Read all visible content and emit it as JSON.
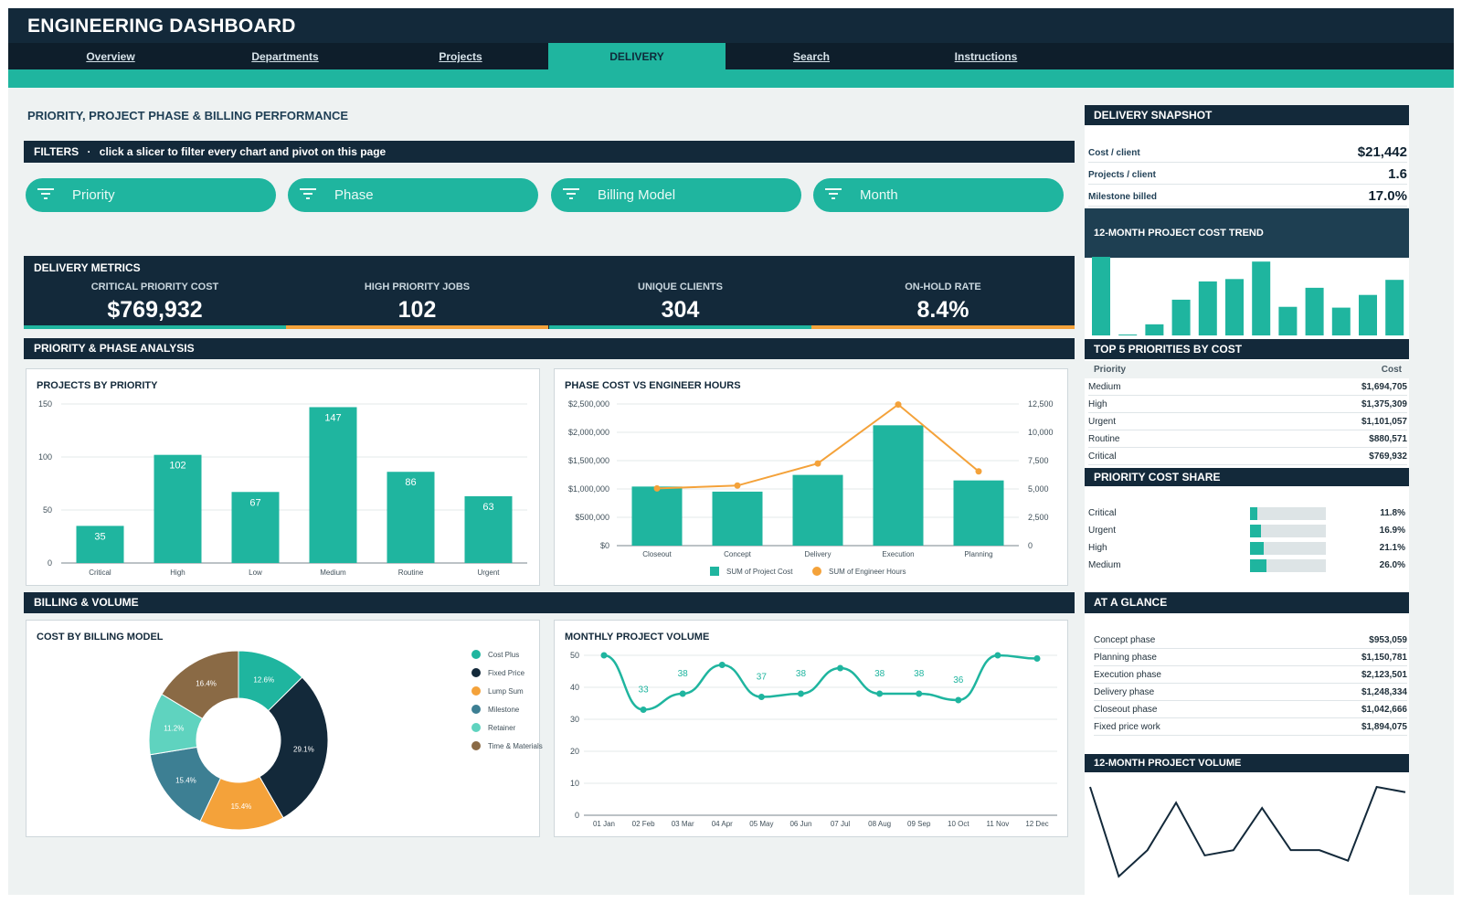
{
  "app": {
    "title": "ENGINEERING DASHBOARD"
  },
  "nav": {
    "tabs": [
      {
        "label": "Overview",
        "active": false
      },
      {
        "label": "Departments",
        "active": false
      },
      {
        "label": "Projects",
        "active": false
      },
      {
        "label": "DELIVERY",
        "active": true
      },
      {
        "label": "Search",
        "active": false
      },
      {
        "label": "Instructions",
        "active": false
      }
    ]
  },
  "page": {
    "heading": "PRIORITY, PROJECT PHASE & BILLING PERFORMANCE"
  },
  "filters": {
    "label": "FILTERS",
    "hint": "click a slicer to filter every chart and pivot on this page",
    "slicers": [
      "Priority",
      "Phase",
      "Billing Model",
      "Month"
    ]
  },
  "metrics": {
    "header": "DELIVERY METRICS",
    "items": [
      {
        "label": "CRITICAL PRIORITY COST",
        "value": "$769,932",
        "accent": "#1fb59f"
      },
      {
        "label": "HIGH PRIORITY JOBS",
        "value": "102",
        "accent": "#f4a23a"
      },
      {
        "label": "UNIQUE CLIENTS",
        "value": "304",
        "accent": "#1fb59f"
      },
      {
        "label": "ON-HOLD RATE",
        "value": "8.4%",
        "accent": "#f4a23a"
      }
    ]
  },
  "sections": {
    "priority_phase": "PRIORITY & PHASE ANALYSIS",
    "billing_volume": "BILLING & VOLUME"
  },
  "colors": {
    "teal": "#1fb59f",
    "navy": "#13293a",
    "orange": "#f4a23a"
  },
  "chart_data": [
    {
      "id": "projects_by_priority",
      "type": "bar",
      "title": "PROJECTS BY PRIORITY",
      "categories": [
        "Critical",
        "High",
        "Low",
        "Medium",
        "Routine",
        "Urgent"
      ],
      "values": [
        35,
        102,
        67,
        147,
        86,
        63
      ],
      "ylim": [
        0,
        150
      ],
      "yticks": [
        0,
        50,
        100,
        150
      ],
      "data_labels": true
    },
    {
      "id": "phase_cost_vs_hours",
      "type": "bar",
      "title": "PHASE COST VS ENGINEER HOURS",
      "categories": [
        "Closeout",
        "Concept",
        "Delivery",
        "Execution",
        "Planning"
      ],
      "series": [
        {
          "name": "SUM of Project Cost",
          "type": "bar",
          "axis": "left",
          "values": [
            1042666,
            953059,
            1248334,
            2123501,
            1150781
          ]
        },
        {
          "name": "SUM of Engineer Hours",
          "type": "line",
          "axis": "right",
          "values": [
            5050,
            5300,
            7250,
            12450,
            6550
          ]
        }
      ],
      "ylim_left": [
        0,
        2500000
      ],
      "yticks_left": [
        "$0",
        "$500,000",
        "$1,000,000",
        "$1,500,000",
        "$2,000,000",
        "$2,500,000"
      ],
      "ylim_right": [
        0,
        12500
      ],
      "yticks_right": [
        "0",
        "2,500",
        "5,000",
        "7,500",
        "10,000",
        "12,500"
      ],
      "legend": "bottom"
    },
    {
      "id": "cost_by_billing_model",
      "type": "pie",
      "title": "COST BY BILLING MODEL",
      "donut": true,
      "slices": [
        {
          "name": "Cost Plus",
          "value": 12.6,
          "label": "12.6%",
          "color": "#1fb59f"
        },
        {
          "name": "Fixed Price",
          "value": 29.1,
          "label": "29.1%",
          "color": "#13293a"
        },
        {
          "name": "Lump Sum",
          "value": 15.4,
          "label": "15.4%",
          "color": "#f4a23a"
        },
        {
          "name": "Milestone",
          "value": 15.4,
          "label": "15.4%",
          "color": "#3d7f93"
        },
        {
          "name": "Retainer",
          "value": 11.2,
          "label": "11.2%",
          "color": "#5fd3bf"
        },
        {
          "name": "Time & Materials",
          "value": 16.4,
          "label": "16.4%",
          "color": "#8a6a45"
        }
      ],
      "legend": "right"
    },
    {
      "id": "monthly_project_volume",
      "type": "line",
      "title": "MONTHLY PROJECT VOLUME",
      "x": [
        "01 Jan",
        "02 Feb",
        "03 Mar",
        "04 Apr",
        "05 May",
        "06 Jun",
        "07 Jul",
        "08 Aug",
        "09 Sep",
        "10 Oct",
        "11 Nov",
        "12 Dec"
      ],
      "values": [
        50,
        33,
        38,
        47,
        37,
        38,
        46,
        38,
        38,
        36,
        50,
        49
      ],
      "labels_shown": [
        "",
        "33",
        "38",
        "",
        "37",
        "38",
        "",
        "38",
        "38",
        "36",
        "",
        ""
      ],
      "ylim": [
        0,
        50
      ],
      "yticks": [
        0,
        10,
        20,
        30,
        40,
        50
      ]
    },
    {
      "id": "cost_trend_12m",
      "type": "bar",
      "title": "12-MONTH PROJECT COST TREND",
      "values": [
        99,
        1,
        14,
        45,
        68,
        71,
        93,
        36,
        60,
        35,
        51,
        70
      ]
    },
    {
      "id": "volume_12m",
      "type": "line",
      "title": "12-MONTH PROJECT VOLUME",
      "values": [
        50,
        33,
        38,
        47,
        37,
        38,
        46,
        38,
        38,
        36,
        50,
        49
      ]
    }
  ],
  "snapshot": {
    "header": "DELIVERY SNAPSHOT",
    "rows": [
      {
        "label": "Cost / client",
        "value": "$21,442"
      },
      {
        "label": "Projects / client",
        "value": "1.6"
      },
      {
        "label": "Milestone billed",
        "value": "17.0%"
      }
    ]
  },
  "top5": {
    "header": "TOP 5 PRIORITIES BY COST",
    "col1": "Priority",
    "col2": "Cost",
    "rows": [
      {
        "name": "Medium",
        "cost": "$1,694,705"
      },
      {
        "name": "High",
        "cost": "$1,375,309"
      },
      {
        "name": "Urgent",
        "cost": "$1,101,057"
      },
      {
        "name": "Routine",
        "cost": "$880,571"
      },
      {
        "name": "Critical",
        "cost": "$769,932"
      }
    ]
  },
  "share": {
    "header": "PRIORITY COST SHARE",
    "rows": [
      {
        "name": "Critical",
        "pct": "11.8%",
        "value": 0.118
      },
      {
        "name": "Urgent",
        "pct": "16.9%",
        "value": 0.169
      },
      {
        "name": "High",
        "pct": "21.1%",
        "value": 0.211
      },
      {
        "name": "Medium",
        "pct": "26.0%",
        "value": 0.26
      }
    ]
  },
  "glance": {
    "header": "AT A GLANCE",
    "rows": [
      {
        "label": "Concept phase",
        "value": "$953,059"
      },
      {
        "label": "Planning phase",
        "value": "$1,150,781"
      },
      {
        "label": "Execution phase",
        "value": "$2,123,501"
      },
      {
        "label": "Delivery phase",
        "value": "$1,248,334"
      },
      {
        "label": "Closeout phase",
        "value": "$1,042,666"
      },
      {
        "label": "Fixed price work",
        "value": "$1,894,075"
      }
    ]
  }
}
